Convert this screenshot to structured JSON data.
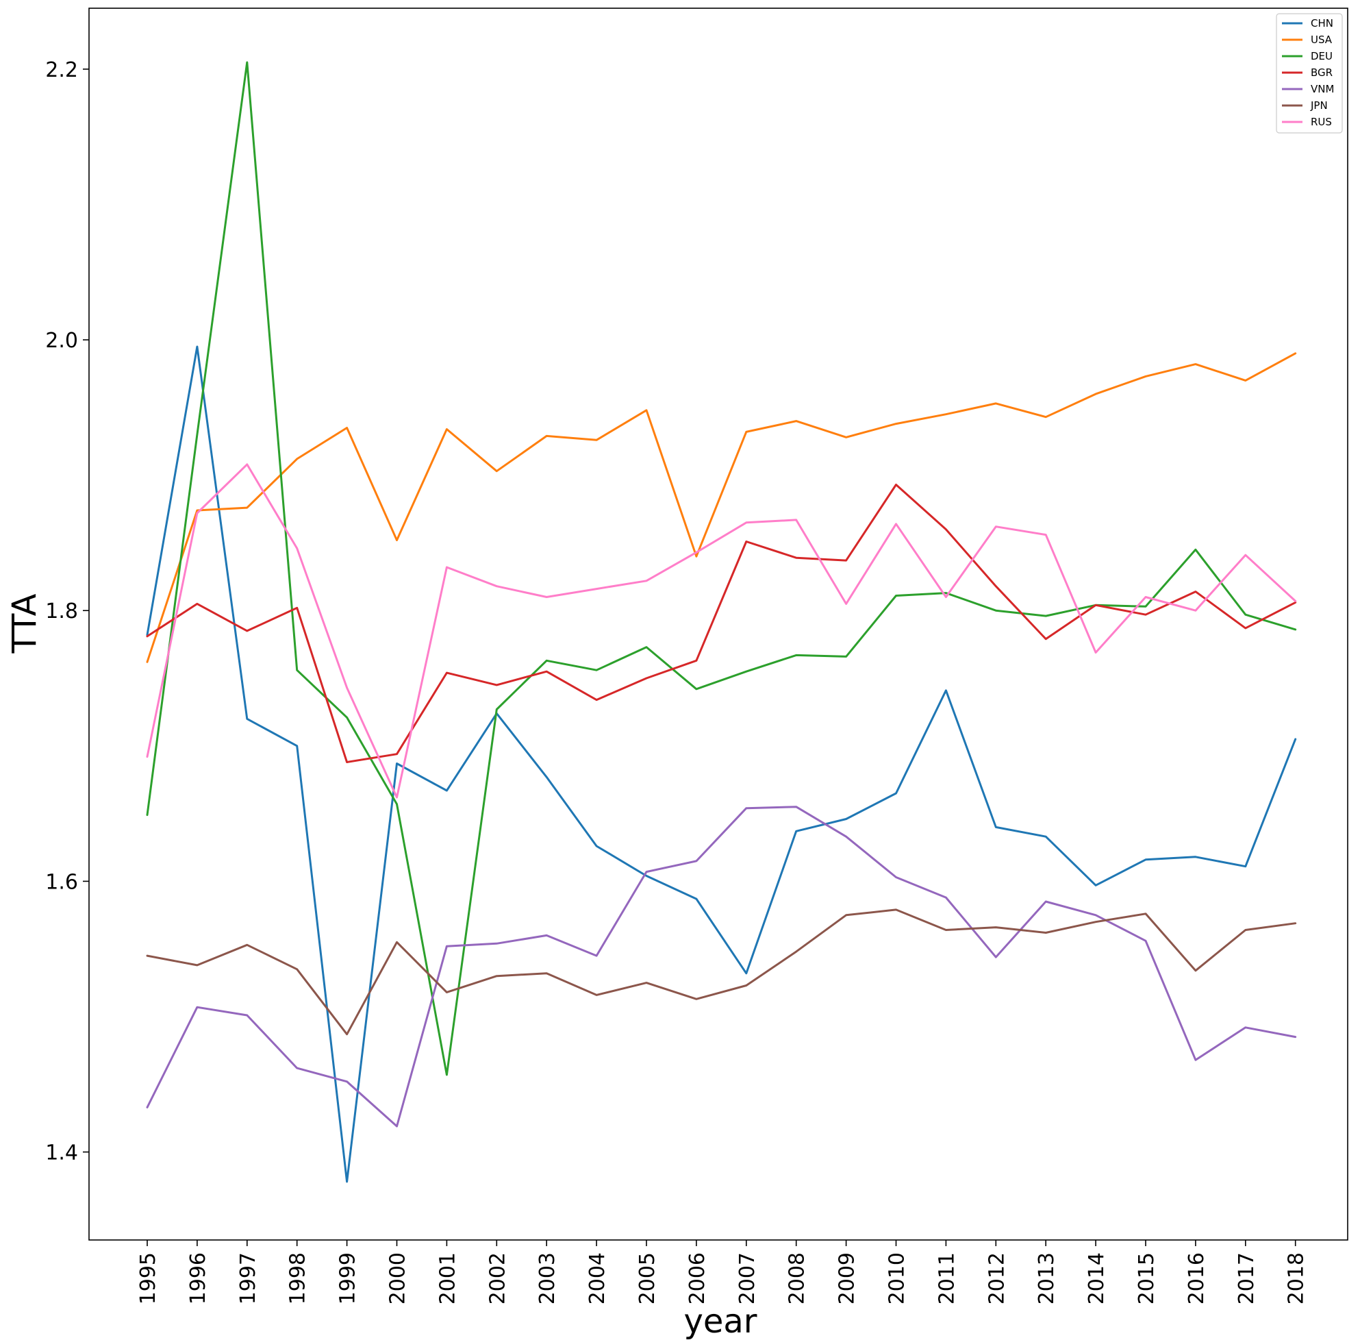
{
  "chart_data": {
    "type": "line",
    "title": "",
    "xlabel": "year",
    "ylabel": "TTA",
    "ylim": [
      1.335,
      2.245
    ],
    "yticks": [
      "1.4",
      "1.6",
      "1.8",
      "2.0",
      "2.2"
    ],
    "legend_position": "top-right",
    "x": [
      "1995",
      "1996",
      "1997",
      "1998",
      "1999",
      "2000",
      "2001",
      "2002",
      "2003",
      "2004",
      "2005",
      "2006",
      "2007",
      "2008",
      "2009",
      "2010",
      "2011",
      "2012",
      "2013",
      "2014",
      "2015",
      "2016",
      "2017",
      "2018"
    ],
    "series": [
      {
        "name": "CHN",
        "color": "#1f77b4",
        "values": [
          1.782,
          1.995,
          1.72,
          1.7,
          1.378,
          1.687,
          1.667,
          1.724,
          1.677,
          1.626,
          1.604,
          1.587,
          1.532,
          1.637,
          1.646,
          1.665,
          1.741,
          1.64,
          1.633,
          1.597,
          1.616,
          1.618,
          1.611,
          1.705
        ]
      },
      {
        "name": "USA",
        "color": "#ff7f0e",
        "values": [
          1.762,
          1.874,
          1.876,
          1.912,
          1.935,
          1.852,
          1.934,
          1.903,
          1.929,
          1.926,
          1.948,
          1.84,
          1.932,
          1.94,
          1.928,
          1.938,
          1.945,
          1.953,
          1.943,
          1.96,
          1.973,
          1.982,
          1.97,
          1.99
        ]
      },
      {
        "name": "DEU",
        "color": "#2ca02c",
        "values": [
          1.649,
          1.93,
          2.205,
          1.756,
          1.721,
          1.657,
          1.457,
          1.727,
          1.763,
          1.756,
          1.773,
          1.742,
          1.755,
          1.767,
          1.766,
          1.811,
          1.813,
          1.8,
          1.796,
          1.804,
          1.803,
          1.845,
          1.797,
          1.786
        ]
      },
      {
        "name": "BGR",
        "color": "#d62728",
        "values": [
          1.781,
          1.805,
          1.785,
          1.802,
          1.688,
          1.694,
          1.754,
          1.745,
          1.755,
          1.734,
          1.75,
          1.763,
          1.851,
          1.839,
          1.837,
          1.893,
          1.86,
          1.818,
          1.779,
          1.804,
          1.797,
          1.814,
          1.787,
          1.806
        ]
      },
      {
        "name": "VNM",
        "color": "#9467bd",
        "values": [
          1.433,
          1.507,
          1.501,
          1.462,
          1.452,
          1.419,
          1.552,
          1.554,
          1.56,
          1.545,
          1.607,
          1.615,
          1.654,
          1.655,
          1.633,
          1.603,
          1.588,
          1.544,
          1.585,
          1.575,
          1.556,
          1.468,
          1.492,
          1.485
        ]
      },
      {
        "name": "JPN",
        "color": "#8c564b",
        "values": [
          1.545,
          1.538,
          1.553,
          1.535,
          1.487,
          1.555,
          1.518,
          1.53,
          1.532,
          1.516,
          1.525,
          1.513,
          1.523,
          1.548,
          1.575,
          1.579,
          1.564,
          1.566,
          1.562,
          1.57,
          1.576,
          1.534,
          1.564,
          1.569
        ]
      },
      {
        "name": "RUS",
        "color": "#ff7ec9",
        "values": [
          1.692,
          1.872,
          1.908,
          1.846,
          1.743,
          1.662,
          1.832,
          1.818,
          1.81,
          1.816,
          1.822,
          1.843,
          1.865,
          1.867,
          1.805,
          1.864,
          1.81,
          1.862,
          1.856,
          1.769,
          1.81,
          1.8,
          1.841,
          1.807
        ]
      }
    ]
  }
}
